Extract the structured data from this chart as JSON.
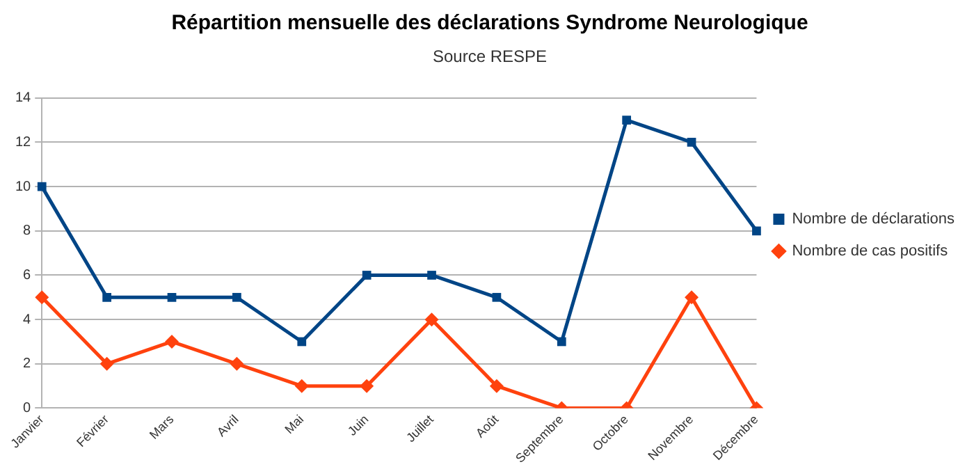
{
  "chart_data": {
    "type": "line",
    "title": "Répartition mensuelle des déclarations Syndrome Neurologique",
    "subtitle": "Source RESPE",
    "categories": [
      "Janvier",
      "Février",
      "Mars",
      "Avril",
      "Mai",
      "Juin",
      "Juillet",
      "Août",
      "Septembre",
      "Octobre",
      "Novembre",
      "Décembre"
    ],
    "series": [
      {
        "name": "Nombre de déclarations",
        "color": "#004586",
        "marker": "square",
        "values": [
          10,
          5,
          5,
          5,
          3,
          6,
          6,
          5,
          3,
          13,
          12,
          8
        ]
      },
      {
        "name": "Nombre de cas positifs",
        "color": "#ff420e",
        "marker": "diamond",
        "values": [
          5,
          2,
          3,
          2,
          1,
          1,
          4,
          1,
          0,
          0,
          5,
          0
        ]
      }
    ],
    "ylim": [
      0,
      14
    ],
    "yticks": [
      0,
      2,
      4,
      6,
      8,
      10,
      12,
      14
    ],
    "grid": "y",
    "legend": "right",
    "line_style": "solid"
  }
}
